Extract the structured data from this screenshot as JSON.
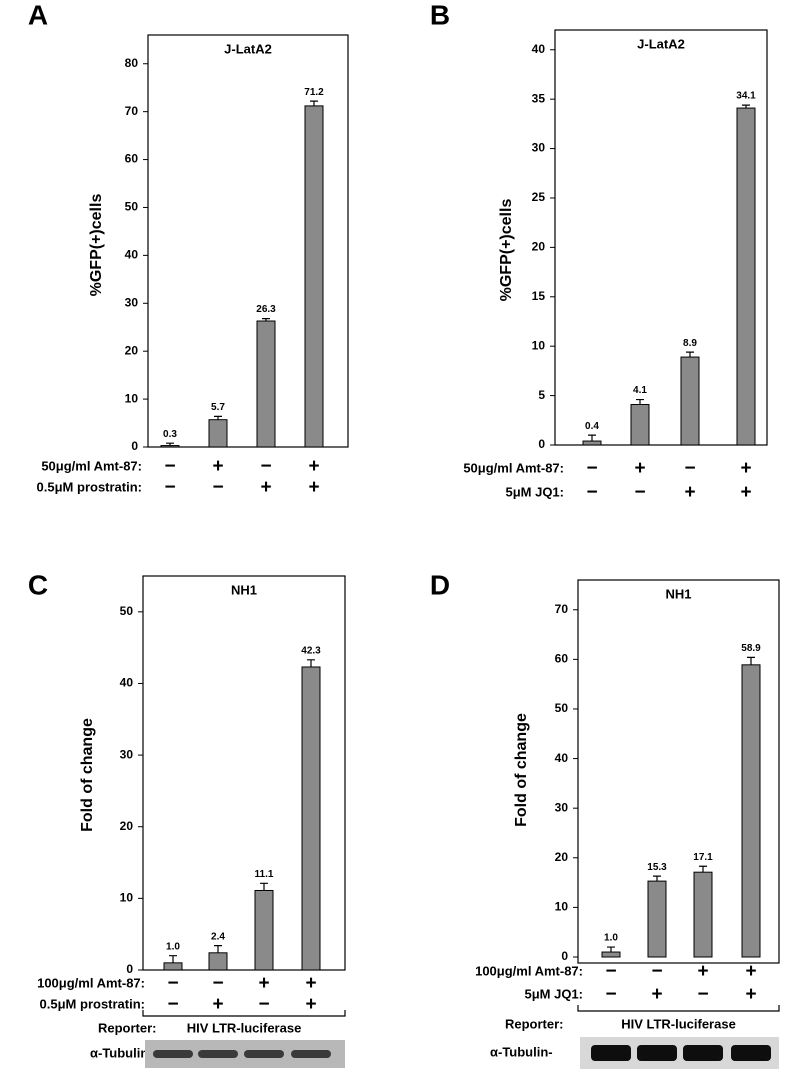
{
  "chart_data": [
    {
      "type": "bar",
      "panel": "A",
      "title": "J-LatA2",
      "y_label": "%GFP(+)cells",
      "values": [
        0.3,
        5.7,
        26.3,
        71.2
      ],
      "errors": [
        0.5,
        0.7,
        0.5,
        1.0
      ],
      "color": "#8a8a8a",
      "ylim": [
        0,
        86
      ],
      "yticks": [
        0,
        10,
        20,
        30,
        40,
        50,
        60,
        70,
        80
      ],
      "treatments": [
        {
          "label": "50μg/ml Amt-87:",
          "signs": [
            "−",
            "+",
            "−",
            "+"
          ]
        },
        {
          "label": "0.5μM prostratin:",
          "signs": [
            "−",
            "−",
            "+",
            "+"
          ]
        }
      ]
    },
    {
      "type": "bar",
      "panel": "B",
      "title": "J-LatA2",
      "y_label": "%GFP(+)cells",
      "values": [
        0.4,
        4.1,
        8.9,
        34.1
      ],
      "errors": [
        0.6,
        0.5,
        0.5,
        0.3
      ],
      "color": "#8a8a8a",
      "ylim": [
        0,
        42
      ],
      "yticks": [
        0,
        5,
        10,
        15,
        20,
        25,
        30,
        35,
        40
      ],
      "treatments": [
        {
          "label": "50μg/ml Amt-87:",
          "signs": [
            "−",
            "+",
            "−",
            "+"
          ]
        },
        {
          "label": "5μM JQ1:",
          "signs": [
            "−",
            "−",
            "+",
            "+"
          ]
        }
      ]
    },
    {
      "type": "bar",
      "panel": "C",
      "title": "NH1",
      "y_label": "Fold of change",
      "values": [
        1.0,
        2.4,
        11.1,
        42.3
      ],
      "value_labels": [
        "1.0",
        "2.4",
        "11.1",
        "42.3"
      ],
      "errors": [
        1.0,
        1.0,
        1.0,
        1.0
      ],
      "color": "#8a8a8a",
      "ylim": [
        0,
        55
      ],
      "yticks": [
        0,
        10,
        20,
        30,
        40,
        50
      ],
      "treatments": [
        {
          "label": "100μg/ml Amt-87:",
          "signs": [
            "−",
            "−",
            "+",
            "+"
          ]
        },
        {
          "label": "0.5μM prostratin:",
          "signs": [
            "−",
            "+",
            "−",
            "+"
          ]
        }
      ],
      "reporter_label": "Reporter:",
      "reporter": "HIV LTR-luciferase",
      "blot_label": "α-Tubulin-"
    },
    {
      "type": "bar",
      "panel": "D",
      "title": "NH1",
      "y_label": "Fold of change",
      "values": [
        1.0,
        15.3,
        17.1,
        58.9
      ],
      "value_labels": [
        "1.0",
        "15.3",
        "17.1",
        "58.9"
      ],
      "errors": [
        1.0,
        1.0,
        1.2,
        1.5
      ],
      "color": "#8a8a8a",
      "ylim": [
        0,
        76
      ],
      "yticks": [
        0,
        10,
        20,
        30,
        40,
        50,
        60,
        70
      ],
      "treatments": [
        {
          "label": "100μg/ml Amt-87:",
          "signs": [
            "−",
            "−",
            "+",
            "+"
          ]
        },
        {
          "label": "5μM JQ1:",
          "signs": [
            "−",
            "+",
            "−",
            "+"
          ]
        }
      ],
      "reporter_label": "Reporter:",
      "reporter": "HIV LTR-luciferase",
      "blot_label": "α-Tubulin-"
    }
  ]
}
